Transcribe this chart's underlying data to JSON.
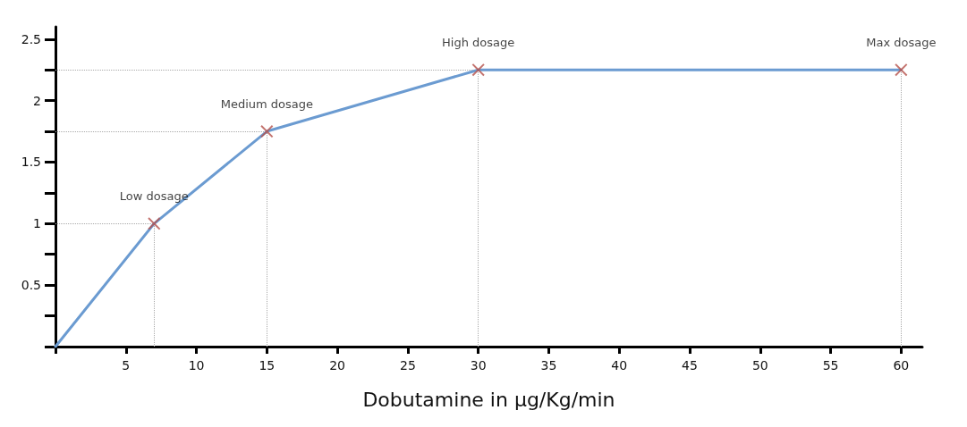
{
  "chart_data": {
    "type": "line",
    "xlabel": "Dobutamine in μg/Kg/min",
    "xlim": [
      0,
      61.5
    ],
    "xticks": [
      {
        "value": 0,
        "label": null
      },
      5,
      10,
      15,
      20,
      25,
      30,
      35,
      40,
      45,
      50,
      55,
      60
    ],
    "ylim": [
      0,
      2.6
    ],
    "yticks": [
      {
        "value": 0,
        "label": null
      },
      {
        "value": 0.25,
        "label": null
      },
      0.5,
      {
        "value": 0.75,
        "label": null
      },
      1,
      {
        "value": 1.25,
        "label": null
      },
      1.5,
      {
        "value": 1.75,
        "label": null
      },
      2,
      {
        "value": 2.25,
        "label": null
      },
      2.5
    ],
    "line_style": "solid",
    "series": [
      {
        "color": "#6b9bd1",
        "marker": "none",
        "x": [
          0,
          7,
          15,
          30,
          60
        ],
        "values": [
          0,
          1,
          1.75,
          2.25,
          2.25
        ]
      },
      {
        "type": "scatter",
        "color": "#b5504a",
        "marker": "cross",
        "x": [
          7,
          15,
          30,
          60
        ],
        "values": [
          1,
          1.75,
          2.25,
          2.25
        ]
      }
    ],
    "ref_lines": [
      {
        "axis": "x",
        "value": 7,
        "color": "#aaaaaa",
        "line_style": "dotted"
      },
      {
        "axis": "x",
        "value": 15,
        "color": "#aaaaaa",
        "line_style": "dotted"
      },
      {
        "axis": "x",
        "value": 30,
        "color": "#aaaaaa",
        "line_style": "dotted"
      },
      {
        "axis": "x",
        "value": 60,
        "color": "#aaaaaa",
        "line_style": "dotted"
      },
      {
        "axis": "y",
        "value": 1,
        "color": "#aaaaaa",
        "line_style": "dotted"
      },
      {
        "axis": "y",
        "value": 1.75,
        "color": "#aaaaaa",
        "line_style": "dotted"
      },
      {
        "axis": "y",
        "value": 2.25,
        "color": "#aaaaaa",
        "line_style": "dotted"
      }
    ],
    "annotations": [
      {
        "text": "Low dosage",
        "x": 7,
        "y": 1
      },
      {
        "text": "Medium dosage",
        "x": 15,
        "y": 1.75
      },
      {
        "text": "High dosage",
        "x": 30,
        "y": 2.25
      },
      {
        "text": "Max dosage",
        "x": 60,
        "y": 2.25
      }
    ]
  }
}
